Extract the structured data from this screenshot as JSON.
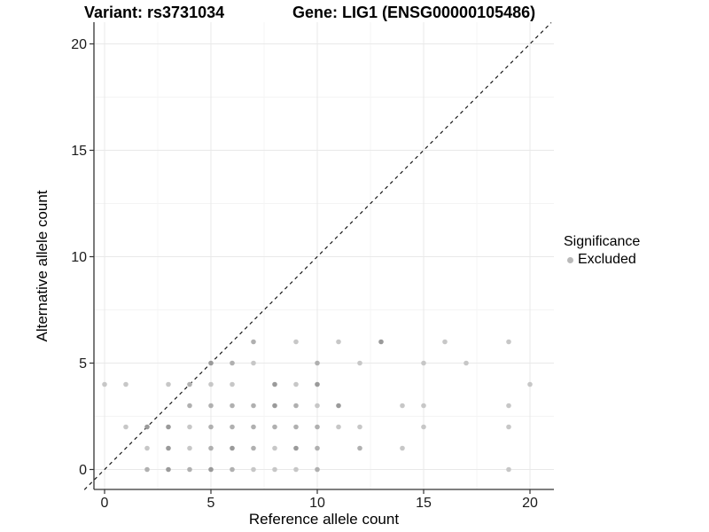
{
  "header": {
    "variant_title": "Variant: rs3731034",
    "gene_title": "Gene: LIG1 (ENSG00000105486)"
  },
  "legend": {
    "title": "Significance",
    "items": [
      {
        "label": "Excluded",
        "color": "#b9b9b9",
        "marker": "dot-icon"
      }
    ]
  },
  "colors": {
    "point_light": "#c7c7c7",
    "point_medium": "#b0b0b0",
    "point_dark": "#9a9a9a",
    "grid_major": "#e9e9e9",
    "grid_minor": "#f4f4f4",
    "axis": "#333333",
    "identity_line": "#1a1a1a",
    "text": "#1a1a1a",
    "legend_dot": "#b9b9b9"
  },
  "chart_data": {
    "type": "scatter",
    "title": "Variant: rs3731034    Gene: LIG1 (ENSG00000105486)",
    "xlabel": "Reference allele count",
    "ylabel": "Alternative allele count",
    "xlim": [
      0,
      20
    ],
    "ylim": [
      0,
      20
    ],
    "x_ticks": [
      0,
      5,
      10,
      15,
      20
    ],
    "y_ticks": [
      0,
      5,
      10,
      15,
      20
    ],
    "minor_ticks": [
      2.5,
      7.5,
      12.5,
      17.5
    ],
    "grid": true,
    "legend_position": "right",
    "identity_line": {
      "style": "dashed",
      "from": [
        -0.95,
        -0.95
      ],
      "to": [
        21.0,
        21.0
      ]
    },
    "series": [
      {
        "name": "Excluded",
        "marker": "circle",
        "points": [
          [
            7,
            6,
            2
          ],
          [
            9,
            6,
            1
          ],
          [
            11,
            6,
            1
          ],
          [
            13,
            6,
            3
          ],
          [
            16,
            6,
            1
          ],
          [
            19,
            6,
            1
          ],
          [
            5,
            5,
            3
          ],
          [
            6,
            5,
            2
          ],
          [
            7,
            5,
            1
          ],
          [
            10,
            5,
            2
          ],
          [
            12,
            5,
            1
          ],
          [
            15,
            5,
            1
          ],
          [
            17,
            5,
            1
          ],
          [
            0,
            4,
            1
          ],
          [
            1,
            4,
            1
          ],
          [
            3,
            4,
            1
          ],
          [
            4,
            4,
            2
          ],
          [
            5,
            4,
            1
          ],
          [
            6,
            4,
            1
          ],
          [
            8,
            4,
            3
          ],
          [
            9,
            4,
            1
          ],
          [
            10,
            4,
            3
          ],
          [
            20,
            4,
            1
          ],
          [
            4,
            3,
            2
          ],
          [
            5,
            3,
            2
          ],
          [
            6,
            3,
            2
          ],
          [
            7,
            3,
            2
          ],
          [
            8,
            3,
            3
          ],
          [
            9,
            3,
            2
          ],
          [
            10,
            3,
            1
          ],
          [
            11,
            3,
            3
          ],
          [
            14,
            3,
            1
          ],
          [
            15,
            3,
            1
          ],
          [
            19,
            3,
            1
          ],
          [
            1,
            2,
            1
          ],
          [
            2,
            2,
            3
          ],
          [
            3,
            2,
            3
          ],
          [
            4,
            2,
            1
          ],
          [
            5,
            2,
            2
          ],
          [
            6,
            2,
            2
          ],
          [
            7,
            2,
            2
          ],
          [
            8,
            2,
            2
          ],
          [
            9,
            2,
            2
          ],
          [
            10,
            2,
            2
          ],
          [
            11,
            2,
            1
          ],
          [
            12,
            2,
            1
          ],
          [
            15,
            2,
            1
          ],
          [
            19,
            2,
            1
          ],
          [
            2,
            1,
            1
          ],
          [
            3,
            1,
            3
          ],
          [
            4,
            1,
            1
          ],
          [
            5,
            1,
            2
          ],
          [
            6,
            1,
            3
          ],
          [
            7,
            1,
            2
          ],
          [
            8,
            1,
            1
          ],
          [
            9,
            1,
            3
          ],
          [
            10,
            1,
            2
          ],
          [
            12,
            1,
            2
          ],
          [
            14,
            1,
            1
          ],
          [
            2,
            0,
            2
          ],
          [
            3,
            0,
            3
          ],
          [
            4,
            0,
            2
          ],
          [
            5,
            0,
            3
          ],
          [
            6,
            0,
            2
          ],
          [
            7,
            0,
            1
          ],
          [
            8,
            0,
            1
          ],
          [
            9,
            0,
            1
          ],
          [
            10,
            0,
            2
          ],
          [
            19,
            0,
            1
          ]
        ],
        "point_note": "each point is [reference_allele_count, alternative_allele_count, shade(1=light,2=medium,3=dark overlap)]"
      }
    ]
  }
}
